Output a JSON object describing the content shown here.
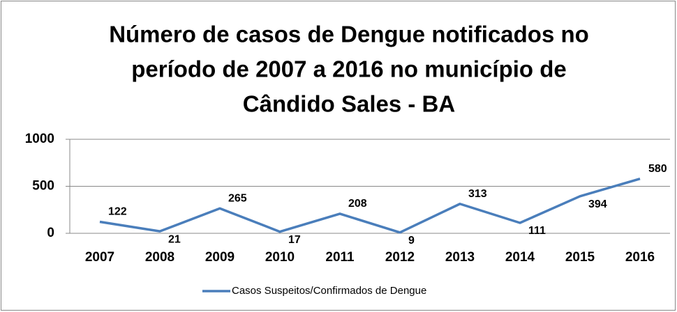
{
  "chart_data": {
    "type": "line",
    "title": [
      "Número de casos de Dengue notificados no",
      "período de 2007 a 2016 no município de",
      "Cândido Sales - BA"
    ],
    "categories": [
      "2007",
      "2008",
      "2009",
      "2010",
      "2011",
      "2012",
      "2013",
      "2014",
      "2015",
      "2016"
    ],
    "series": [
      {
        "name": "Casos Suspeitos/Confirmados de Dengue",
        "color": "#4a7ebb",
        "values": [
          122,
          21,
          265,
          17,
          208,
          9,
          313,
          111,
          394,
          580
        ]
      }
    ],
    "ylim": [
      0,
      1000
    ],
    "yticks": [
      0,
      500,
      1000
    ],
    "grid": true,
    "legend": "bottom"
  }
}
